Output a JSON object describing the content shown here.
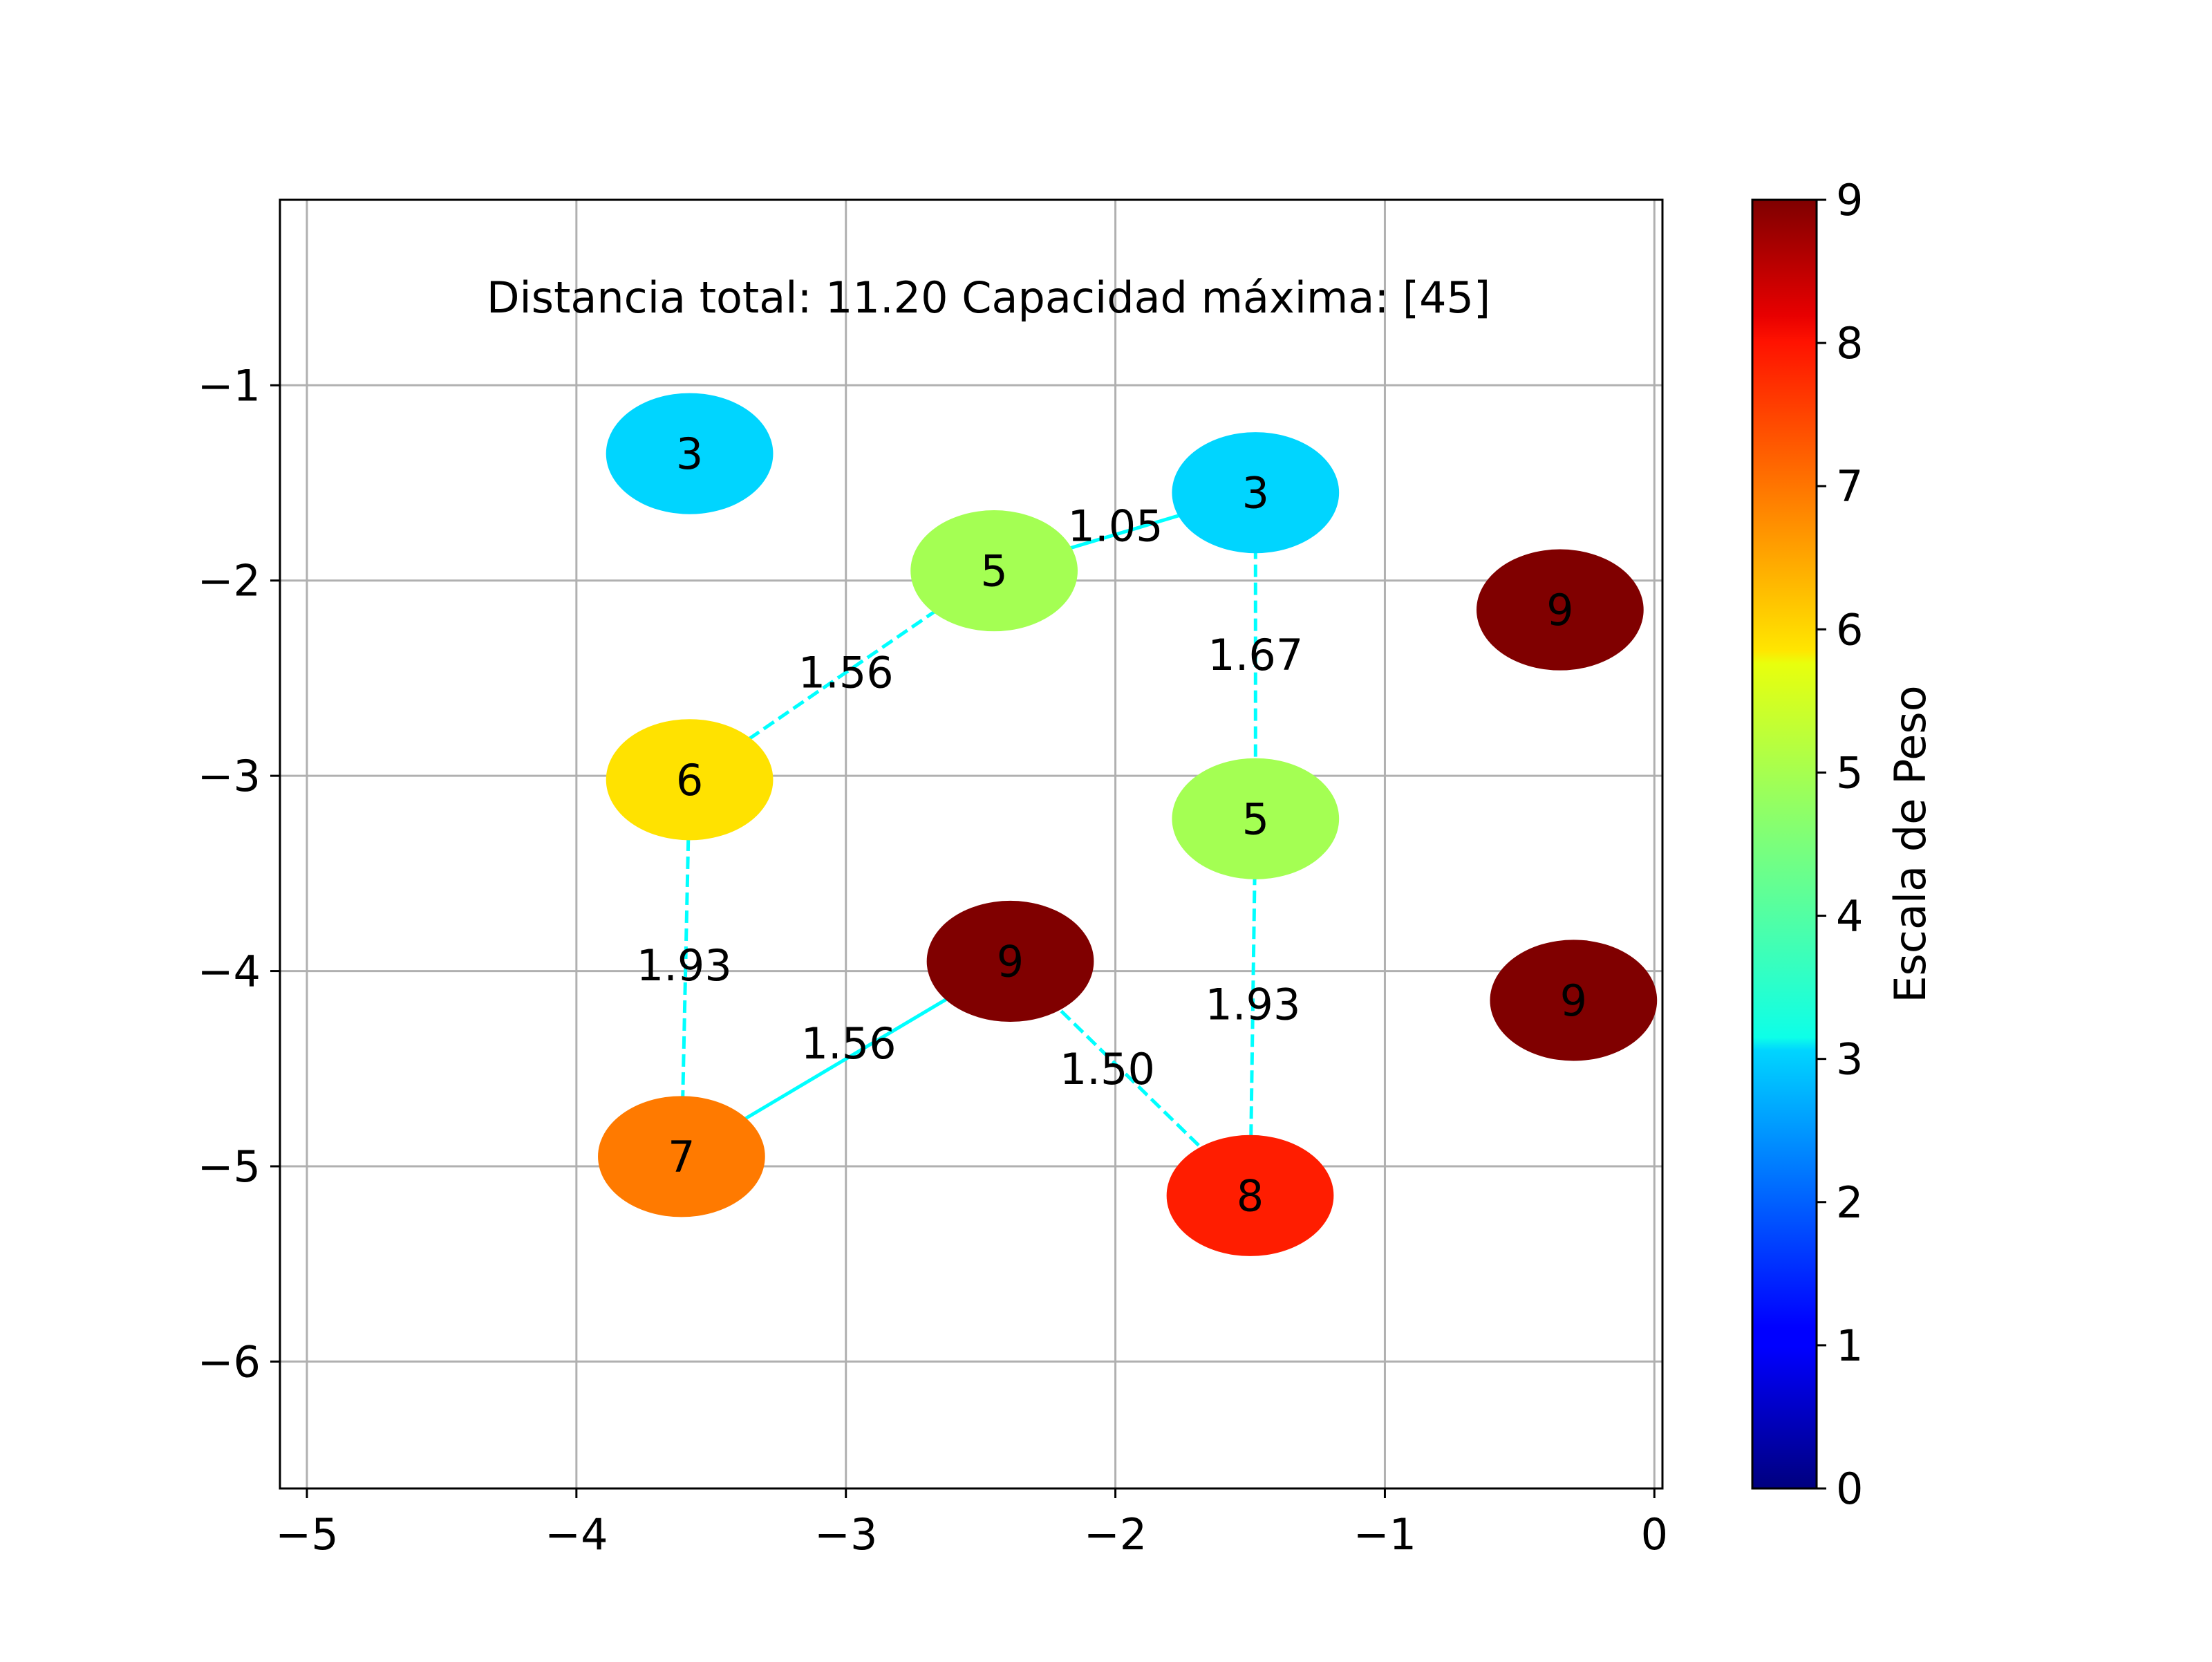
{
  "chart_data": {
    "type": "scatter",
    "title": "",
    "annotation": "Distancia total: 11.20  Capacidad máxima: [45]",
    "xlabel": "",
    "ylabel": "",
    "xlim": [
      -5.1,
      0.03
    ],
    "ylim": [
      -6.65,
      -0.05
    ],
    "xticks": [
      -5,
      -4,
      -3,
      -2,
      -1,
      0
    ],
    "yticks": [
      -6,
      -5,
      -4,
      -3,
      -2,
      -1
    ],
    "xtick_labels": [
      "−5",
      "−4",
      "−3",
      "−2",
      "−1",
      "0"
    ],
    "ytick_labels": [
      "−6",
      "−5",
      "−4",
      "−3",
      "−2",
      "−1"
    ],
    "grid": true,
    "colormap": "jet",
    "colorbar": {
      "label": "Escala de Peso",
      "range": [
        0,
        9
      ],
      "ticks": [
        0,
        1,
        2,
        3,
        4,
        5,
        6,
        7,
        8,
        9
      ],
      "tick_labels": [
        "0",
        "1",
        "2",
        "3",
        "4",
        "5",
        "6",
        "7",
        "8",
        "9"
      ]
    },
    "nodes": [
      {
        "x": -3.58,
        "y": -1.35,
        "weight": 3,
        "label": "3",
        "color": "#00d5ff"
      },
      {
        "x": -1.48,
        "y": -1.55,
        "weight": 3,
        "label": "3",
        "color": "#00d5ff"
      },
      {
        "x": -2.45,
        "y": -1.95,
        "weight": 5,
        "label": "5",
        "color": "#a4ff53"
      },
      {
        "x": -0.35,
        "y": -2.15,
        "weight": 9,
        "label": "9",
        "color": "#800000"
      },
      {
        "x": -3.58,
        "y": -3.02,
        "weight": 6,
        "label": "6",
        "color": "#ffe200"
      },
      {
        "x": -1.48,
        "y": -3.22,
        "weight": 5,
        "label": "5",
        "color": "#a4ff53"
      },
      {
        "x": -2.39,
        "y": -3.95,
        "weight": 9,
        "label": "9",
        "color": "#800000"
      },
      {
        "x": -0.3,
        "y": -4.15,
        "weight": 9,
        "label": "9",
        "color": "#800000"
      },
      {
        "x": -3.61,
        "y": -4.95,
        "weight": 7,
        "label": "7",
        "color": "#ff7a00"
      },
      {
        "x": -1.5,
        "y": -5.15,
        "weight": 8,
        "label": "8",
        "color": "#ff1d00"
      }
    ],
    "node_radius": {
      "x": 0.31,
      "y": 0.31
    },
    "route_color": "#00ffff",
    "edges": [
      {
        "from": [
          -2.45,
          -1.95
        ],
        "to": [
          -1.48,
          -1.55
        ],
        "distance": "1.05",
        "style": "solid",
        "label_at": [
          -2.0,
          -1.72
        ]
      },
      {
        "from": [
          -1.48,
          -1.55
        ],
        "to": [
          -1.48,
          -3.22
        ],
        "distance": "1.67",
        "style": "dashed",
        "label_at": [
          -1.48,
          -2.38
        ]
      },
      {
        "from": [
          -1.48,
          -3.22
        ],
        "to": [
          -1.5,
          -5.15
        ],
        "distance": "1.93",
        "style": "dashed",
        "label_at": [
          -1.49,
          -4.17
        ]
      },
      {
        "from": [
          -1.5,
          -5.15
        ],
        "to": [
          -2.39,
          -3.95
        ],
        "distance": "1.50",
        "style": "dashed",
        "label_at": [
          -2.03,
          -4.5
        ]
      },
      {
        "from": [
          -2.39,
          -3.95
        ],
        "to": [
          -3.61,
          -4.95
        ],
        "distance": "1.56",
        "style": "solid",
        "label_at": [
          -2.99,
          -4.37
        ]
      },
      {
        "from": [
          -3.61,
          -4.95
        ],
        "to": [
          -3.58,
          -3.02
        ],
        "distance": "1.93",
        "style": "dashed",
        "label_at": [
          -3.6,
          -3.97
        ]
      },
      {
        "from": [
          -3.58,
          -3.02
        ],
        "to": [
          -2.45,
          -1.95
        ],
        "distance": "1.56",
        "style": "dashed",
        "label_at": [
          -3.0,
          -2.47
        ]
      }
    ]
  }
}
